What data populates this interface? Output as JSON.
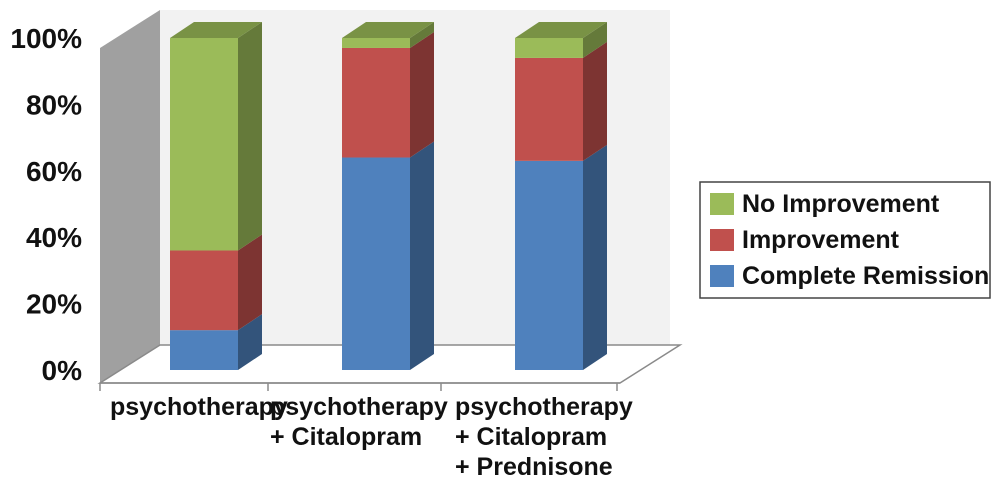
{
  "chart_data": {
    "type": "bar",
    "stacked": true,
    "three_d": true,
    "categories": [
      [
        "psychotherapy"
      ],
      [
        "psychotherapy",
        "+ Citalopram"
      ],
      [
        "psychotherapy",
        "+ Citalopram",
        "+ Prednisone"
      ]
    ],
    "series": [
      {
        "name": "Complete Remission",
        "values": [
          12,
          64,
          63
        ]
      },
      {
        "name": "Improvement",
        "values": [
          24,
          33,
          31
        ]
      },
      {
        "name": "No Improvement",
        "values": [
          64,
          3,
          6
        ]
      }
    ],
    "colors": {
      "Complete Remission": "#4f81bd",
      "Improvement": "#c0504d",
      "No Improvement": "#9bbb59"
    },
    "ylim": [
      0,
      100
    ],
    "y_ticks": [
      "0%",
      "20%",
      "40%",
      "60%",
      "80%",
      "100%"
    ],
    "y_tick_values": [
      0,
      20,
      40,
      60,
      80,
      100
    ],
    "grid": false,
    "legend_position": "right",
    "legend_order": [
      "No Improvement",
      "Improvement",
      "Complete Remission"
    ]
  }
}
